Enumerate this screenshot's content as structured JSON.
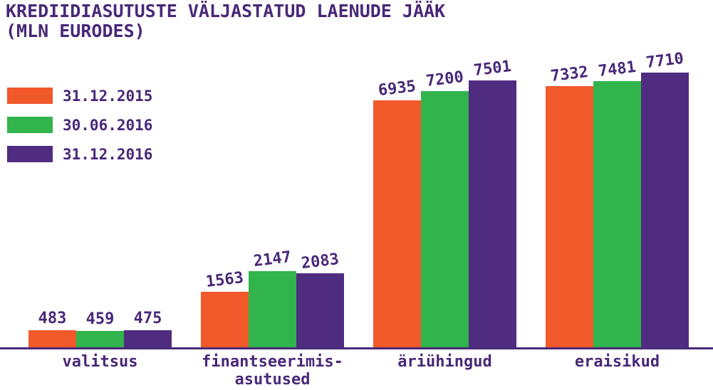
{
  "title": {
    "line1": "KREDIIDIASUTUSTE VÄLJASTATUD LAENUDE JÄÄK",
    "line2": "(MLN EURODES)"
  },
  "colors": {
    "text": "#482878",
    "axis": "#4A2A7A",
    "background": "#FFFFFF",
    "series": [
      "#F1592A",
      "#31B44B",
      "#4F2C80"
    ]
  },
  "chart_data": {
    "type": "bar",
    "title": "KREDIIDIASUTUSTE VÄLJASTATUD LAENUDE JÄÄK (MLN EURODES)",
    "ylabel": "MLN EURODES",
    "categories": [
      "valitsus",
      "finantseerimis-asutused",
      "äriühingud",
      "eraisikud"
    ],
    "category_display_lines": [
      [
        "valitsus"
      ],
      [
        "finantseerimis-",
        "asutused"
      ],
      [
        "äriühingud"
      ],
      [
        "eraisikud"
      ]
    ],
    "series": [
      {
        "name": "31.12.2015",
        "color": "#F1592A",
        "values": [
          483,
          1563,
          6935,
          7332
        ]
      },
      {
        "name": "30.06.2016",
        "color": "#31B44B",
        "values": [
          459,
          2147,
          7200,
          7481
        ]
      },
      {
        "name": "31.12.2016",
        "color": "#4F2C80",
        "values": [
          475,
          2083,
          7501,
          7710
        ]
      }
    ],
    "ylim": [
      0,
      7710
    ],
    "grid": false,
    "y_axis_visible": false,
    "value_labels": true,
    "legend_position": "top-left"
  }
}
